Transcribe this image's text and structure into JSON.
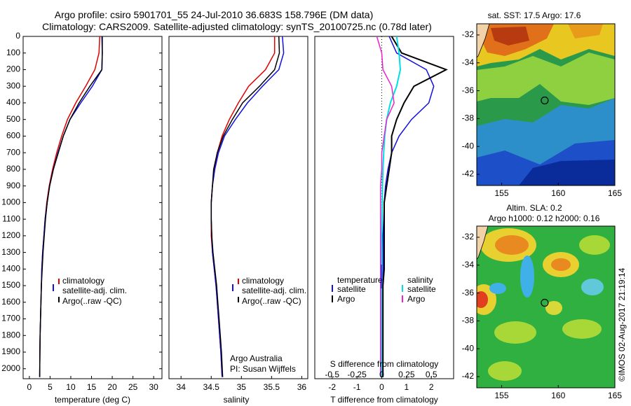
{
  "header": {
    "line1": "Argo profile: csiro 5901701_55 24-Jul-2010 36.683S 158.796E (DM data)",
    "line2": "Climatology: CARS2009. Satellite-adjusted climatology: synTS_20100725.nc (0.78d later)"
  },
  "colors": {
    "climatology": "#e00000",
    "satellite": "#1010e0",
    "argo": "#000000",
    "salinity_satellite": "#00e0e0",
    "salinity_argo": "#ee22cc"
  },
  "depth_axis": {
    "ticks": [
      0,
      100,
      200,
      300,
      400,
      500,
      600,
      700,
      800,
      900,
      1000,
      1100,
      1200,
      1300,
      1400,
      1500,
      1600,
      1700,
      1800,
      1900,
      2000
    ],
    "range": [
      0,
      2060
    ]
  },
  "temperature_panel": {
    "xlabel": "temperature (deg C)",
    "xticks": [
      0,
      5,
      10,
      15,
      20,
      25,
      30
    ],
    "xrange": [
      -1.5,
      32
    ],
    "legend": [
      "climatology",
      "satellite-adj. clim.",
      "Argo(..raw -QC)"
    ]
  },
  "salinity_panel": {
    "xlabel": "salinity",
    "xticks": [
      "34",
      "34.5",
      "35",
      "35.5",
      "36"
    ],
    "xrange": [
      33.8,
      36.1
    ],
    "legend": [
      "climatology",
      "satellite-adj. clim.",
      "Argo(..raw -QC)"
    ],
    "note_line1": "Argo Australia",
    "note_line2": "PI: Susan Wijffels"
  },
  "difference_panel": {
    "top_label": "S difference from climatology",
    "s_ticks": [
      "-0.5",
      "-0.25",
      "0",
      "0.25",
      "0.5"
    ],
    "t_ticks": [
      "-2",
      "-1",
      "0",
      "1",
      "2"
    ],
    "xlabel": "T difference from climatology",
    "t_range": [
      -2.7,
      2.9
    ],
    "legend_temp_title": "temperature",
    "legend_temp_items": [
      "satellite",
      "Argo"
    ],
    "legend_sal_title": "salinity",
    "legend_sal_items": [
      "satellite",
      "Argo"
    ]
  },
  "sst_map": {
    "title": "sat. SST: 17.5 Argo: 17.6",
    "lat_ticks": [
      "-32",
      "-34",
      "-36",
      "-38",
      "-40",
      "-42"
    ],
    "lon_ticks": [
      "155",
      "160",
      "165"
    ],
    "float_lon": 158.8,
    "float_lat": -36.7
  },
  "sla_map": {
    "title_line1": "Altim. SLA: 0.2",
    "title_line2": "Argo h1000: 0.12 h2000: 0.16",
    "lat_ticks": [
      "-32",
      "-34",
      "-36",
      "-38",
      "-40",
      "-42"
    ],
    "lon_ticks": [
      "155",
      "160",
      "165"
    ],
    "float_lon": 158.8,
    "float_lat": -36.7
  },
  "side_text": "©IMOS 02-Aug-2017 21:19:14",
  "chart_data": [
    {
      "type": "line",
      "title": "",
      "xlabel": "temperature (deg C)",
      "ylabel": "",
      "xlim": [
        -1.5,
        32
      ],
      "ylim": [
        2060,
        0
      ],
      "series": [
        {
          "name": "climatology",
          "x": [
            17.0,
            16.8,
            15.8,
            13.6,
            11.2,
            9.2,
            7.8,
            6.6,
            5.6,
            4.8,
            4.2,
            3.8,
            3.5,
            3.2,
            3.0,
            2.9,
            2.8,
            2.7,
            2.6,
            2.55,
            2.5
          ],
          "y": [
            0,
            100,
            200,
            300,
            400,
            500,
            600,
            700,
            800,
            900,
            1000,
            1100,
            1200,
            1300,
            1400,
            1500,
            1600,
            1700,
            1800,
            1900,
            2050
          ]
        },
        {
          "name": "satellite-adj. clim.",
          "x": [
            17.5,
            17.6,
            17.5,
            15.2,
            12.4,
            9.8,
            8.2,
            6.9,
            5.8,
            4.9,
            4.3,
            3.8,
            3.5,
            3.2,
            3.0,
            2.9,
            2.8,
            2.7,
            2.6,
            2.55,
            2.5
          ],
          "y": [
            0,
            100,
            200,
            300,
            400,
            500,
            600,
            700,
            800,
            900,
            1000,
            1100,
            1200,
            1300,
            1400,
            1500,
            1600,
            1700,
            1800,
            1900,
            2050
          ]
        },
        {
          "name": "Argo(..raw -QC)",
          "x": [
            17.6,
            17.6,
            17.5,
            14.6,
            12.0,
            9.8,
            8.2,
            7.0,
            5.8,
            4.9,
            4.3,
            3.9,
            3.6,
            3.3,
            3.1,
            2.9,
            2.8,
            2.7,
            2.6,
            2.55,
            2.5
          ],
          "y": [
            0,
            100,
            200,
            300,
            400,
            500,
            600,
            700,
            800,
            900,
            1000,
            1100,
            1200,
            1300,
            1400,
            1500,
            1600,
            1700,
            1800,
            1900,
            2050
          ]
        }
      ]
    },
    {
      "type": "line",
      "title": "",
      "xlabel": "salinity",
      "ylabel": "",
      "xlim": [
        33.8,
        36.1
      ],
      "ylim": [
        2060,
        0
      ],
      "series": [
        {
          "name": "climatology",
          "x": [
            35.55,
            35.55,
            35.4,
            35.12,
            34.95,
            34.8,
            34.68,
            34.6,
            34.55,
            34.52,
            34.5,
            34.5,
            34.5,
            34.52,
            34.55,
            34.58,
            34.6,
            34.62,
            34.64,
            34.66,
            34.68
          ],
          "y": [
            0,
            100,
            200,
            300,
            400,
            500,
            600,
            700,
            800,
            900,
            1000,
            1100,
            1200,
            1300,
            1400,
            1500,
            1600,
            1700,
            1800,
            1900,
            2050
          ]
        },
        {
          "name": "satellite-adj. clim.",
          "x": [
            35.68,
            35.7,
            35.62,
            35.35,
            35.1,
            34.9,
            34.72,
            34.62,
            34.56,
            34.52,
            34.5,
            34.5,
            34.51,
            34.52,
            34.55,
            34.58,
            34.6,
            34.62,
            34.64,
            34.66,
            34.68
          ],
          "y": [
            0,
            100,
            200,
            300,
            400,
            500,
            600,
            700,
            800,
            900,
            1000,
            1100,
            1200,
            1300,
            1400,
            1500,
            1600,
            1700,
            1800,
            1900,
            2050
          ]
        },
        {
          "name": "Argo(..raw -QC)",
          "x": [
            35.62,
            35.63,
            35.55,
            35.3,
            35.02,
            34.85,
            34.7,
            34.6,
            34.54,
            34.52,
            34.5,
            34.5,
            34.51,
            34.53,
            34.56,
            34.59,
            34.61,
            34.63,
            34.65,
            34.67,
            34.69
          ],
          "y": [
            0,
            100,
            200,
            300,
            400,
            500,
            600,
            700,
            800,
            900,
            1000,
            1100,
            1200,
            1300,
            1400,
            1500,
            1600,
            1700,
            1800,
            1900,
            2050
          ]
        }
      ]
    },
    {
      "type": "line",
      "title": "",
      "xlabel": "T difference from climatology",
      "ylabel": "",
      "xlim": [
        -2.7,
        2.9
      ],
      "ylim": [
        2060,
        0
      ],
      "series": [
        {
          "name": "temperature satellite",
          "x": [
            0.3,
            0.6,
            1.8,
            2.1,
            1.9,
            1.2,
            0.7,
            0.4,
            0.25,
            0.15,
            0.1,
            0.08,
            0.05,
            0.05,
            0.05,
            0.04,
            0.03,
            0.03,
            0.02,
            0.02,
            0.01
          ],
          "y": [
            0,
            100,
            200,
            300,
            400,
            500,
            600,
            700,
            800,
            900,
            1000,
            1100,
            1200,
            1300,
            1400,
            1500,
            1600,
            1700,
            1800,
            1900,
            2050
          ]
        },
        {
          "name": "temperature Argo",
          "x": [
            0.4,
            0.8,
            2.6,
            1.3,
            0.9,
            0.6,
            0.4,
            0.4,
            0.3,
            0.2,
            0.1,
            0.1,
            0.1,
            0.1,
            0.1,
            0.05,
            0.05,
            0.05,
            0.05,
            0.05,
            0.05
          ],
          "y": [
            0,
            100,
            200,
            300,
            400,
            500,
            600,
            700,
            800,
            900,
            1000,
            1100,
            1200,
            1300,
            1400,
            1500,
            1600,
            1700,
            1800,
            1900,
            2050
          ]
        },
        {
          "name": "salinity satellite",
          "x": [
            0.6,
            0.7,
            0.75,
            0.6,
            0.35,
            0.2,
            0.12,
            0.08,
            0.05,
            0.03,
            0.02,
            0.01,
            0.0,
            -0.01,
            -0.01,
            -0.01,
            -0.01,
            -0.01,
            -0.01,
            -0.01,
            -0.01
          ],
          "y": [
            0,
            100,
            200,
            300,
            400,
            500,
            600,
            700,
            800,
            900,
            1000,
            1100,
            1200,
            1300,
            1400,
            1500,
            1600,
            1700,
            1800,
            1900,
            2050
          ]
        },
        {
          "name": "salinity Argo",
          "x": [
            -0.2,
            0.0,
            0.05,
            0.4,
            0.5,
            0.2,
            0.1,
            0.0,
            0.0,
            -0.05,
            -0.05,
            -0.05,
            -0.05,
            -0.05,
            -0.05,
            -0.05,
            -0.05,
            -0.05,
            -0.05,
            -0.05,
            -0.05
          ],
          "y": [
            0,
            100,
            200,
            300,
            400,
            500,
            600,
            700,
            800,
            900,
            1000,
            1100,
            1200,
            1300,
            1400,
            1500,
            1600,
            1700,
            1800,
            1900,
            2050
          ]
        }
      ]
    }
  ]
}
